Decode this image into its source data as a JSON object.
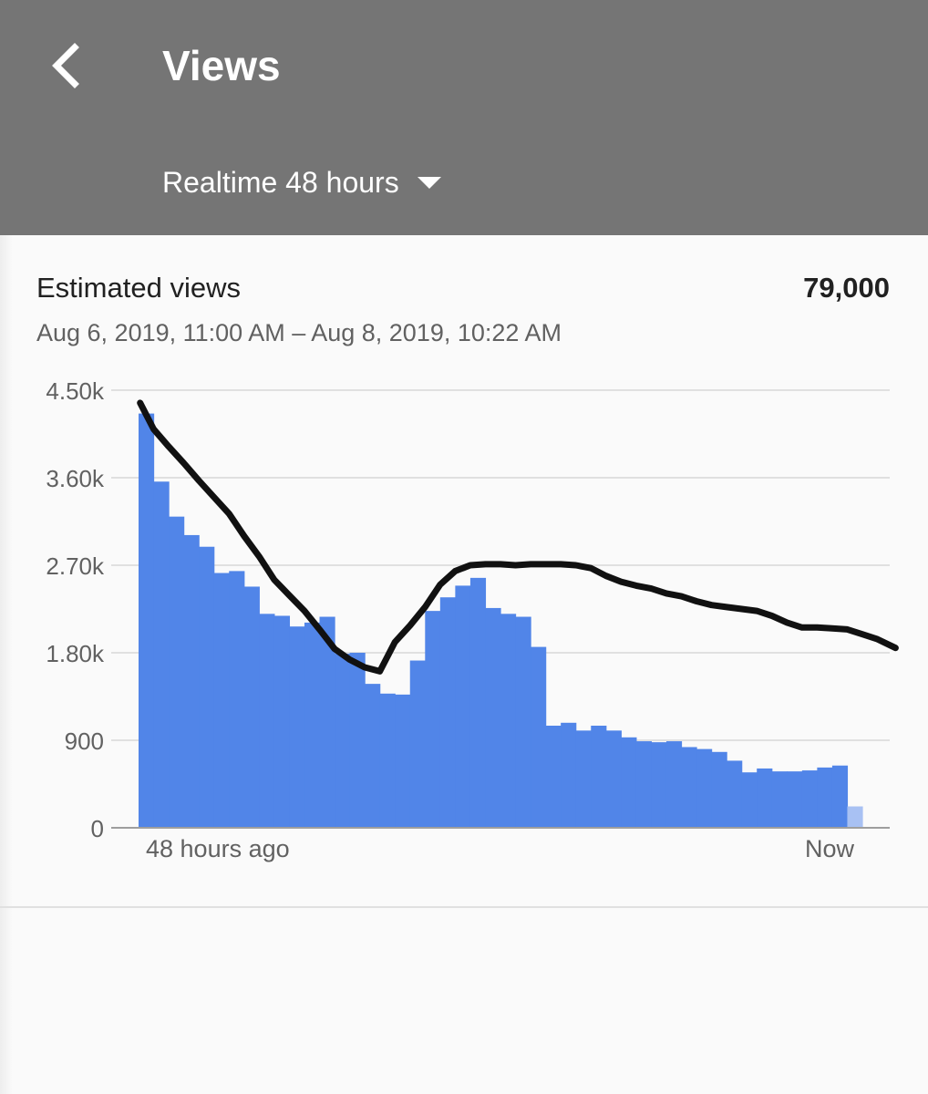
{
  "appbar": {
    "title": "Views",
    "back_icon": "arrow-back-icon",
    "period": {
      "label": "Realtime 48 hours",
      "icon": "dropdown-caret-icon"
    }
  },
  "card": {
    "metric_name": "Estimated views",
    "metric_total": "79,000",
    "date_range": "Aug 6, 2019, 11:00 AM – Aug 8, 2019, 10:22 AM"
  },
  "colors": {
    "appbar": "#757575",
    "bar": "#5185e8",
    "bar_current": "#a8c1f3",
    "grid": "#e0e0e0",
    "overlay_line": "#111111"
  },
  "chart_data": {
    "type": "bar",
    "y_ticks": [
      "0",
      "900",
      "1.80k",
      "2.70k",
      "3.60k",
      "4.50k"
    ],
    "ylim": [
      0,
      4500
    ],
    "x_labels": {
      "start": "48 hours ago",
      "end": "Now"
    },
    "values": [
      4260,
      3560,
      3200,
      3010,
      2890,
      2620,
      2640,
      2480,
      2200,
      2180,
      2070,
      2110,
      2170,
      1790,
      1800,
      1480,
      1380,
      1370,
      1720,
      2230,
      2370,
      2490,
      2570,
      2260,
      2200,
      2170,
      1860,
      1050,
      1080,
      1000,
      1050,
      1000,
      930,
      890,
      880,
      890,
      830,
      810,
      780,
      690,
      570,
      610,
      580,
      580,
      590,
      620,
      640,
      220
    ],
    "overlay_line": [
      [
        0.1,
        4370
      ],
      [
        1,
        4100
      ],
      [
        2,
        3920
      ],
      [
        3,
        3750
      ],
      [
        4,
        3570
      ],
      [
        5,
        3400
      ],
      [
        6,
        3230
      ],
      [
        7,
        3000
      ],
      [
        8,
        2790
      ],
      [
        9,
        2550
      ],
      [
        10,
        2390
      ],
      [
        11,
        2230
      ],
      [
        12,
        2040
      ],
      [
        13,
        1840
      ],
      [
        14,
        1730
      ],
      [
        15,
        1650
      ],
      [
        16,
        1610
      ],
      [
        17,
        1910
      ],
      [
        18,
        2080
      ],
      [
        19,
        2270
      ],
      [
        20,
        2500
      ],
      [
        21,
        2640
      ],
      [
        22,
        2700
      ],
      [
        23,
        2710
      ],
      [
        24,
        2710
      ],
      [
        25,
        2700
      ],
      [
        26,
        2710
      ],
      [
        27,
        2710
      ],
      [
        28,
        2710
      ],
      [
        29,
        2700
      ],
      [
        30,
        2670
      ],
      [
        31,
        2590
      ],
      [
        32,
        2530
      ],
      [
        33,
        2490
      ],
      [
        34,
        2460
      ],
      [
        35,
        2410
      ],
      [
        36,
        2380
      ],
      [
        37,
        2330
      ],
      [
        38,
        2290
      ],
      [
        39,
        2270
      ],
      [
        40,
        2250
      ],
      [
        41,
        2230
      ],
      [
        42,
        2180
      ],
      [
        43,
        2110
      ],
      [
        44,
        2060
      ],
      [
        45,
        2060
      ],
      [
        46,
        2050
      ],
      [
        47,
        2040
      ],
      [
        48,
        1990
      ],
      [
        49,
        1940
      ],
      [
        50.2,
        1850
      ]
    ]
  }
}
